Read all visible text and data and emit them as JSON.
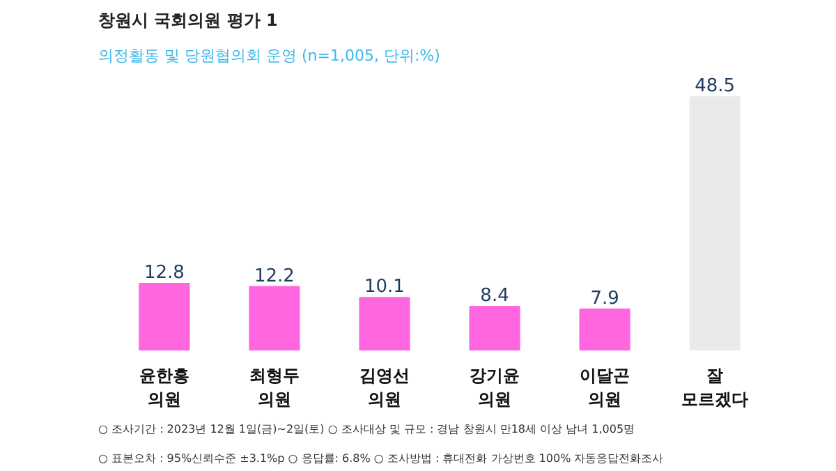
{
  "chart_data": {
    "type": "bar",
    "title": "창원시 국회의원 평가 1",
    "subtitle": "의정활동 및 당원협의회 운영",
    "categories": [
      "윤한홍\n의원",
      "최형두\n의원",
      "김영선\n의원",
      "강기윤\n의원",
      "이달곤\n의원",
      "잘\n모르겠다"
    ],
    "values": [
      12.8,
      12.2,
      10.1,
      8.4,
      7.9,
      48.5
    ],
    "colors": [
      "#ff66e0",
      "#ff66e0",
      "#ff66e0",
      "#ff66e0",
      "#ff66e0",
      "#e8eaeb"
    ],
    "data_labels": true,
    "grid": false,
    "tick_labels": "x",
    "annotations": [
      "(n=1,005, 단위:%)",
      "○ 조사기간 : 2023년 12월 1일(금)~2일(토)    ○ 조사대상 및 규모 : 경남 창원시 만18세 이상 남녀 1,005명",
      "○ 표본오차 : 95%신뢰수준 ±3.1%p   ○ 응답률: 6.8%   ○ 조사방법 : 휴대전화 가상번호 100% 자동응답전화조사"
    ]
  }
}
